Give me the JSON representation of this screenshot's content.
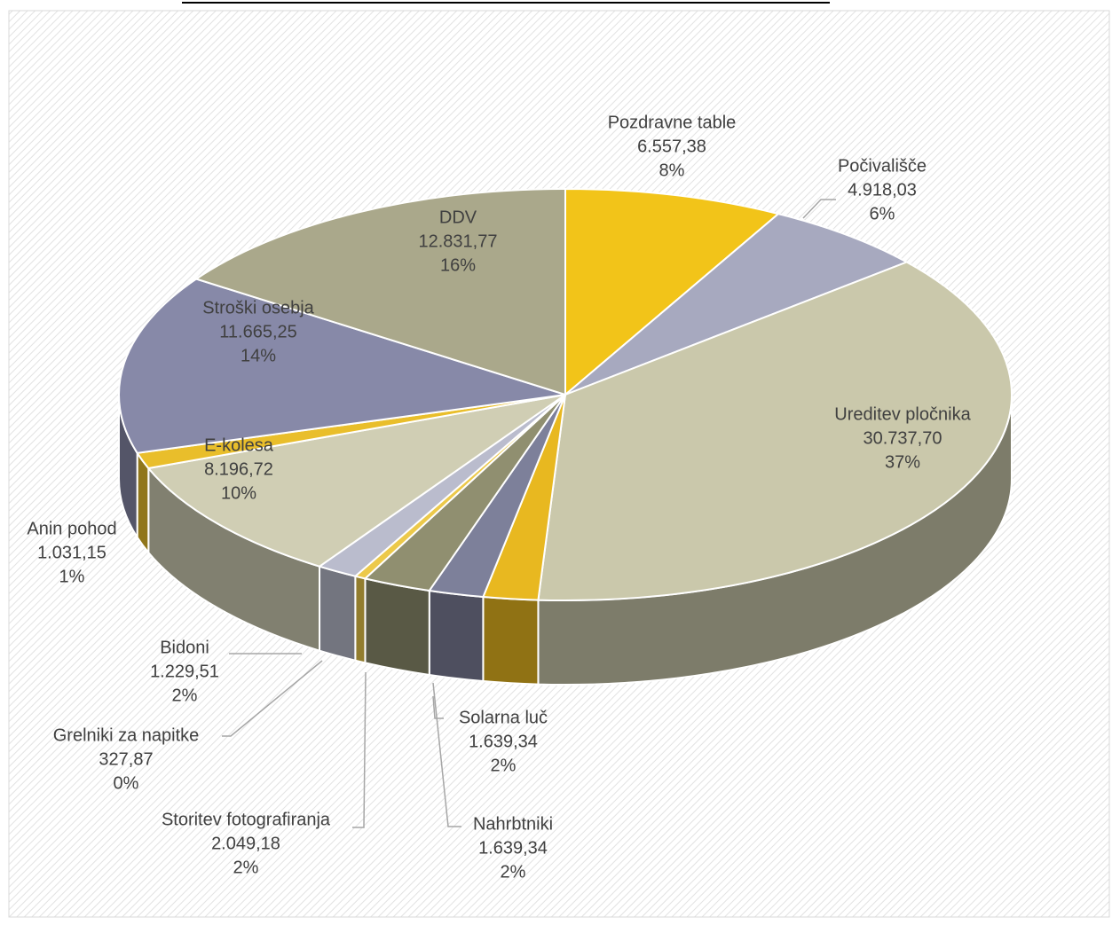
{
  "chart_data": {
    "type": "pie3d",
    "categories": [
      "Pozdravne table",
      "Počivališče",
      "Ureditev pločnika",
      "Solarna luč",
      "Nahrbtniki",
      "Storitev fotografiranja",
      "Grelniki za napitke",
      "Bidoni",
      "E-kolesa",
      "Anin pohod",
      "Stroški osebja",
      "DDV"
    ],
    "values": [
      6557.38,
      4918.03,
      30737.7,
      1639.34,
      1639.34,
      2049.18,
      327.87,
      1229.51,
      8196.72,
      1031.15,
      11665.25,
      12831.77
    ],
    "value_labels": [
      "6.557,38",
      "4.918,03",
      "30.737,70",
      "1.639,34",
      "1.639,34",
      "2.049,18",
      "327,87",
      "1.229,51",
      "8.196,72",
      "1.031,15",
      "11.665,25",
      "12.831,77"
    ],
    "percentages": [
      8,
      6,
      37,
      2,
      2,
      2,
      0,
      2,
      10,
      1,
      14,
      16
    ],
    "percentage_labels": [
      "8%",
      "6%",
      "37%",
      "2%",
      "2%",
      "2%",
      "0%",
      "2%",
      "10%",
      "1%",
      "14%",
      "16%"
    ],
    "colors": [
      "#f2c419",
      "#a7a9bf",
      "#cac8ab",
      "#e8b820",
      "#7d809a",
      "#908f70",
      "#ecc94a",
      "#babccd",
      "#d0ceb4",
      "#e9be2b",
      "#8789a8",
      "#aaa88b"
    ]
  }
}
